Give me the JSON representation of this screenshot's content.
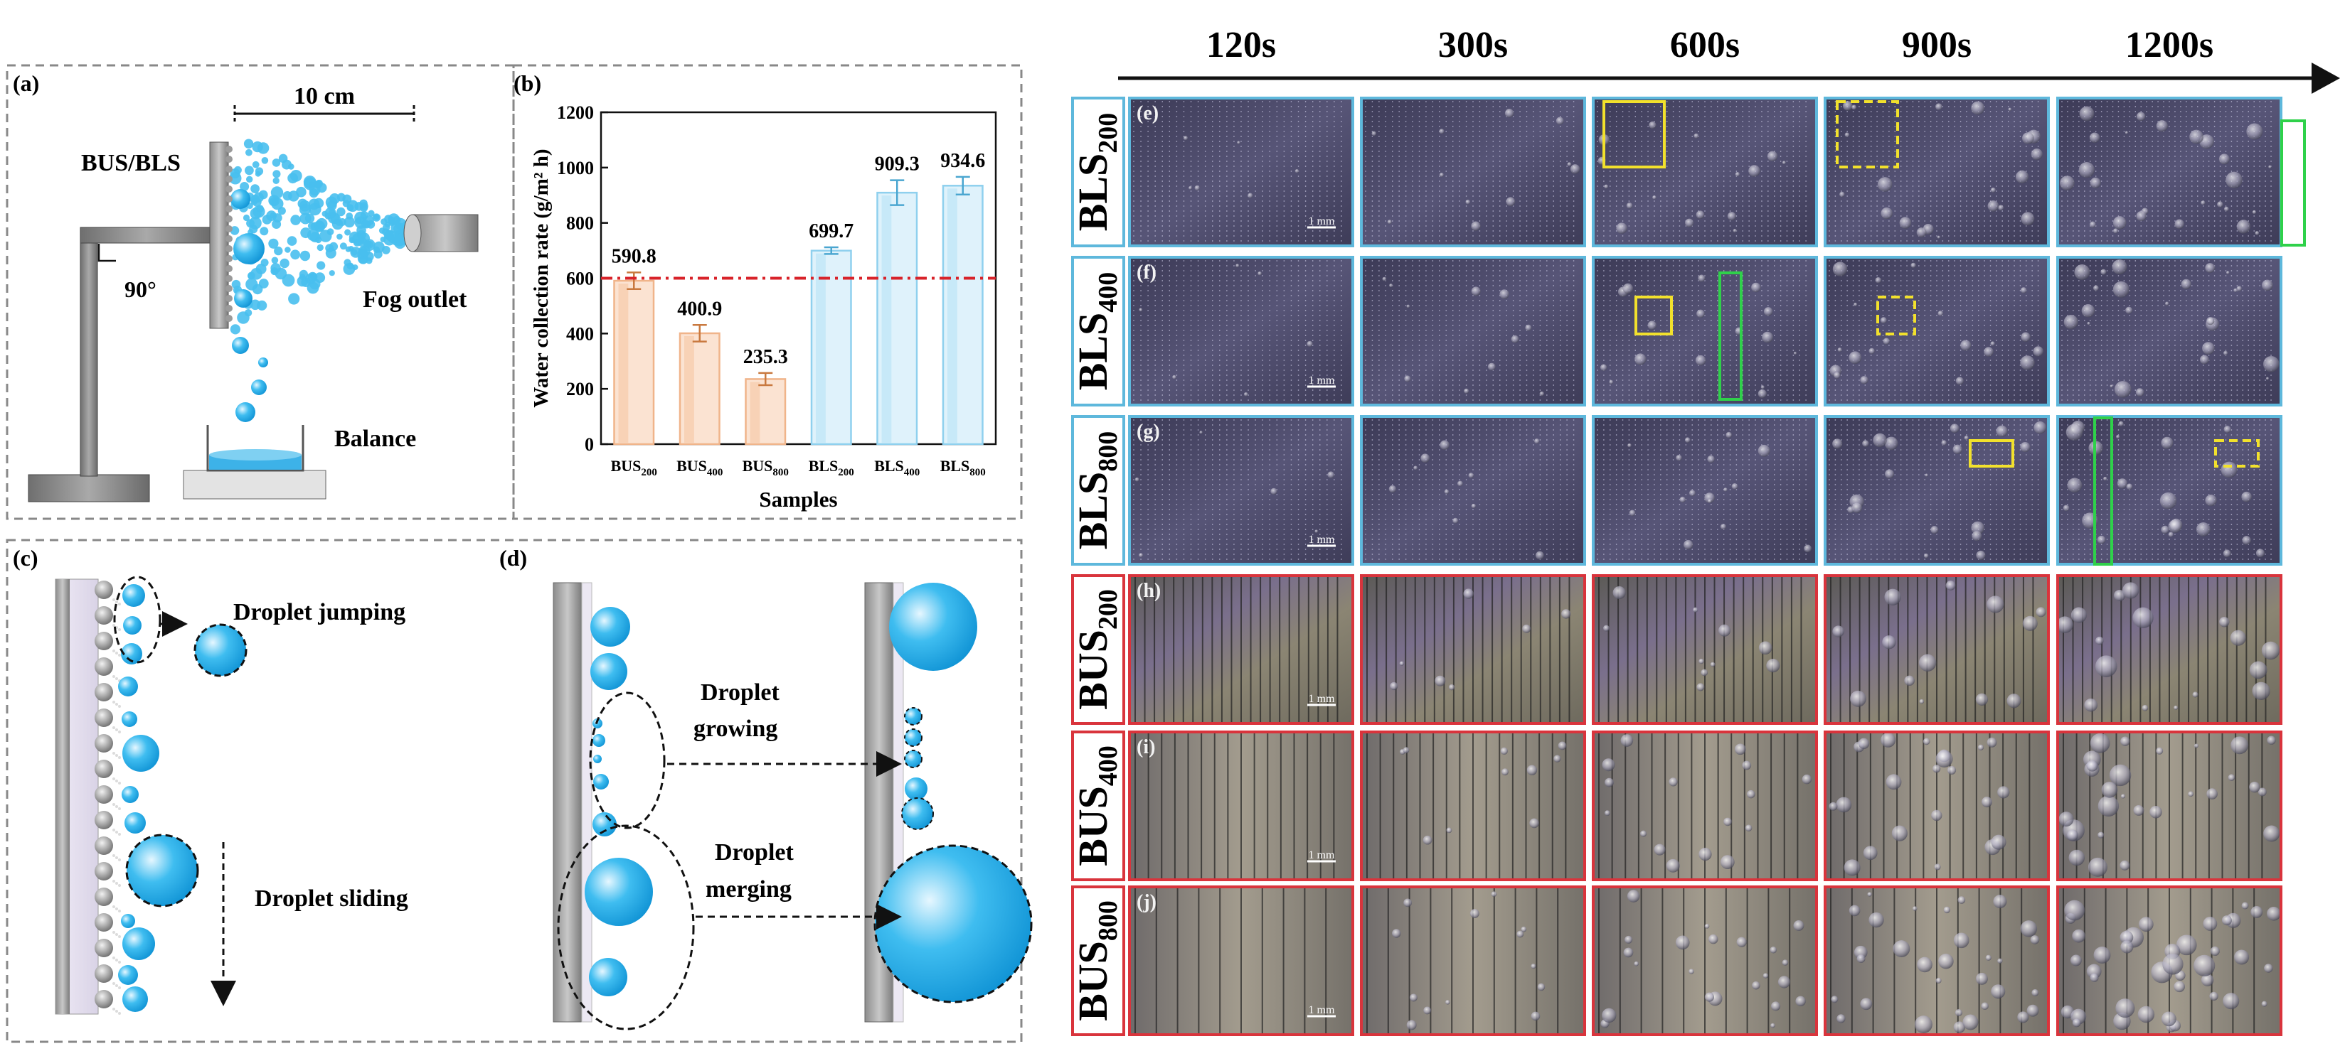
{
  "panel_a": {
    "tag": "(a)",
    "distance_label": "10 cm",
    "sample_label": "BUS/BLS",
    "angle_label": "90°",
    "fog_label": "Fog outlet",
    "balance_label": "Balance"
  },
  "panel_c": {
    "tag": "(c)",
    "jumping_label": "Droplet jumping",
    "sliding_label": "Droplet sliding"
  },
  "panel_d": {
    "tag": "(d)",
    "growing_line1": "Droplet",
    "growing_line2": "growing",
    "merging_line1": "Droplet",
    "merging_line2": "merging"
  },
  "panel_b": {
    "tag": "(b)"
  },
  "chart_data": {
    "type": "bar",
    "categories": [
      "BUS200",
      "BUS400",
      "BUS800",
      "BLS200",
      "BLS400",
      "BLS800"
    ],
    "category_display": [
      {
        "main": "BUS",
        "sub": "200"
      },
      {
        "main": "BUS",
        "sub": "400"
      },
      {
        "main": "BUS",
        "sub": "800"
      },
      {
        "main": "BLS",
        "sub": "200"
      },
      {
        "main": "BLS",
        "sub": "400"
      },
      {
        "main": "BLS",
        "sub": "800"
      }
    ],
    "values": [
      590.8,
      400.9,
      235.3,
      699.7,
      909.3,
      934.6
    ],
    "value_labels": [
      "590.8",
      "400.9",
      "235.3",
      "699.7",
      "909.3",
      "934.6"
    ],
    "errors": [
      30,
      30,
      22,
      12,
      45,
      32
    ],
    "xlabel": "Samples",
    "ylabel": "Water collection rate (g/m² h)",
    "ylim": [
      0,
      1200
    ],
    "yticks": [
      0,
      200,
      400,
      600,
      800,
      1000,
      1200
    ],
    "reference_line": 600,
    "colors": {
      "BUS": "#f0b48a",
      "BUS_fill": "#fbe3d2",
      "BLS": "#8fd0ee",
      "BLS_fill": "#dff2fb",
      "reference": "#d8232a"
    }
  },
  "timeline": {
    "times": [
      "120s",
      "300s",
      "600s",
      "900s",
      "1200s"
    ]
  },
  "rows": [
    {
      "main": "BLS",
      "sub": "200",
      "tag": "(e)",
      "kind": "BLS"
    },
    {
      "main": "BLS",
      "sub": "400",
      "tag": "(f)",
      "kind": "BLS"
    },
    {
      "main": "BLS",
      "sub": "800",
      "tag": "(g)",
      "kind": "BLS"
    },
    {
      "main": "BUS",
      "sub": "200",
      "tag": "(h)",
      "kind": "BUS"
    },
    {
      "main": "BUS",
      "sub": "400",
      "tag": "(i)",
      "kind": "BUS"
    },
    {
      "main": "BUS",
      "sub": "800",
      "tag": "(j)",
      "kind": "BUS"
    }
  ],
  "scale_bar": "1 mm",
  "colors": {
    "droplet": "#21a9e1",
    "bls_frame": "#5eb8dc",
    "bus_frame": "#d9343c",
    "yellow_box": "#f2e12c",
    "green_box": "#2fd14a"
  }
}
